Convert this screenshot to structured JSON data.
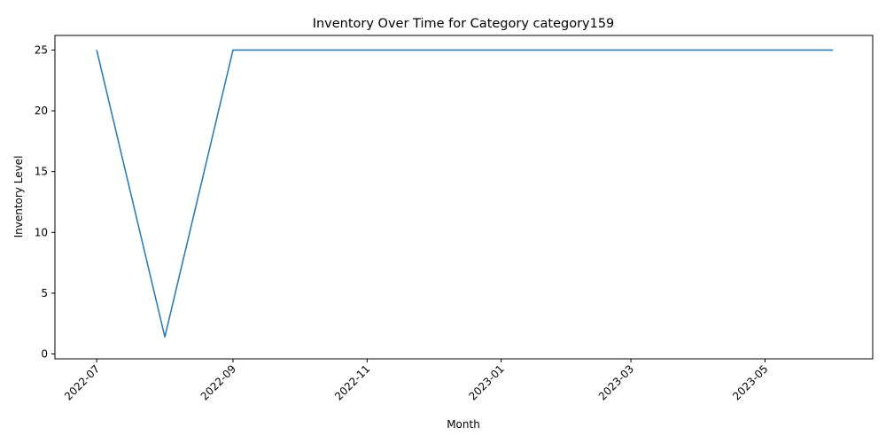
{
  "chart_data": {
    "type": "line",
    "title": "Inventory Over Time for Category category159",
    "xlabel": "Month",
    "ylabel": "Inventory Level",
    "x": [
      "2022-07-01",
      "2022-08-01",
      "2022-09-01",
      "2022-10-01",
      "2022-11-01",
      "2022-12-01",
      "2023-01-01",
      "2023-02-01",
      "2023-03-01",
      "2023-04-01",
      "2023-05-01",
      "2023-06-01"
    ],
    "series": [
      {
        "values": [
          25,
          1.4,
          25,
          25,
          25,
          25,
          25,
          25,
          25,
          25,
          25,
          25
        ],
        "color": "#1f77b4"
      }
    ],
    "xlim": [
      "2022-06-12",
      "2023-06-19"
    ],
    "ylim": [
      -0.4,
      26.2
    ],
    "xticks": [
      "2022-07",
      "2022-09",
      "2022-11",
      "2023-01",
      "2023-03",
      "2023-05"
    ],
    "yticks": [
      0,
      5,
      10,
      15,
      20,
      25
    ],
    "grid": false,
    "legend": "none"
  }
}
